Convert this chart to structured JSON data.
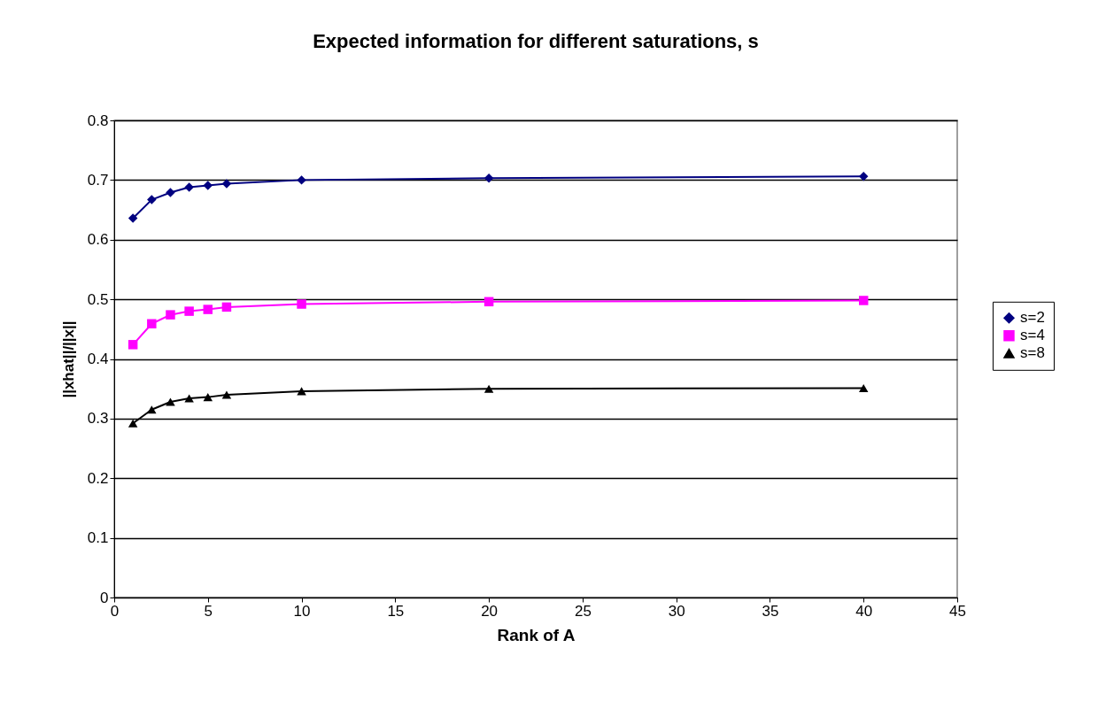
{
  "chart_data": {
    "type": "line",
    "title": "Expected information for different saturations, s",
    "xlabel": "Rank of A",
    "ylabel": "||xhat||/||x||",
    "x": [
      1,
      2,
      3,
      4,
      5,
      6,
      10,
      20,
      40
    ],
    "series": [
      {
        "name": "s=2",
        "color": "#000080",
        "marker": "diamond",
        "values": [
          0.636,
          0.667,
          0.679,
          0.688,
          0.691,
          0.694,
          0.7,
          0.703,
          0.706
        ]
      },
      {
        "name": "s=4",
        "color": "#ff00ff",
        "marker": "square",
        "values": [
          0.424,
          0.459,
          0.474,
          0.48,
          0.483,
          0.487,
          0.492,
          0.496,
          0.498
        ]
      },
      {
        "name": "s=8",
        "color": "#000000",
        "marker": "triangle",
        "values": [
          0.292,
          0.315,
          0.328,
          0.334,
          0.336,
          0.34,
          0.346,
          0.35,
          0.351
        ]
      }
    ],
    "xlim": [
      0,
      45
    ],
    "xticks": [
      0,
      5,
      10,
      15,
      20,
      25,
      30,
      35,
      40,
      45
    ],
    "ylim": [
      0,
      0.8
    ],
    "yticks": [
      0,
      0.1,
      0.2,
      0.3,
      0.4,
      0.5,
      0.6,
      0.7,
      0.8
    ],
    "grid": "y",
    "legend": "right",
    "line_style": "solid"
  }
}
